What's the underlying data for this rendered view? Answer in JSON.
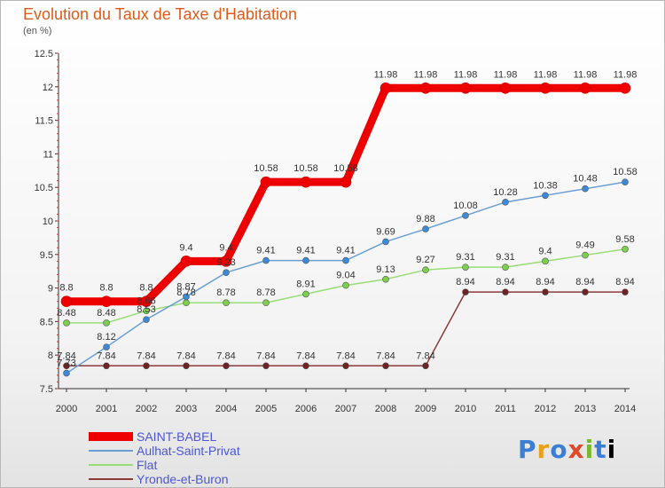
{
  "title": "Evolution du Taux de Taxe d'Habitation",
  "subtitle": "(en %)",
  "logo_text": "Proxiti",
  "chart_data": {
    "type": "line",
    "title": "Evolution du Taux de Taxe d'Habitation",
    "ylabel": "(en %)",
    "xlabel": "",
    "x": [
      "2000",
      "2001",
      "2002",
      "2003",
      "2004",
      "2005",
      "2006",
      "2007",
      "2008",
      "2009",
      "2010",
      "2011",
      "2012",
      "2013",
      "2014"
    ],
    "ylim": [
      7.5,
      12.5
    ],
    "yticks": [
      "7.5",
      "8",
      "8.5",
      "9",
      "9.5",
      "10",
      "10.5",
      "11",
      "11.5",
      "12",
      "12.5"
    ],
    "grid": false,
    "legend_position": "bottom-left",
    "series": [
      {
        "name": "SAINT-BABEL",
        "color": "#ee0000",
        "values": [
          8.8,
          8.8,
          8.8,
          9.4,
          9.4,
          10.58,
          10.58,
          10.58,
          11.98,
          11.98,
          11.98,
          11.98,
          11.98,
          11.98,
          11.98
        ],
        "labels": [
          "8.8",
          "8.8",
          "8.8",
          "9.4",
          "9.4",
          "10.58",
          "10.58",
          "10.58",
          "11.98",
          "11.98",
          "11.98",
          "11.98",
          "11.98",
          "11.98",
          "11.98"
        ]
      },
      {
        "name": "Aulhat-Saint-Privat",
        "color": "#6a9fd4",
        "values": [
          7.73,
          8.12,
          8.53,
          8.87,
          9.23,
          9.41,
          9.41,
          9.41,
          9.69,
          9.88,
          10.08,
          10.28,
          10.38,
          10.48,
          10.58
        ],
        "labels": [
          "7.73",
          "8.12",
          "8.53",
          "8.87",
          "9.23",
          "9.41",
          "9.41",
          "9.41",
          "9.69",
          "9.88",
          "10.08",
          "10.28",
          "10.38",
          "10.48",
          "10.58"
        ]
      },
      {
        "name": "Flat",
        "color": "#99dd77",
        "values": [
          8.48,
          8.48,
          8.66,
          8.78,
          8.78,
          8.78,
          8.91,
          9.04,
          9.13,
          9.27,
          9.31,
          9.31,
          9.4,
          9.49,
          9.58
        ],
        "labels": [
          "8.48",
          "8.48",
          "8.66",
          "8.78",
          "8.78",
          "8.78",
          "8.91",
          "9.04",
          "9.13",
          "9.27",
          "9.31",
          "9.31",
          "9.4",
          "9.49",
          "9.58"
        ]
      },
      {
        "name": "Yronde-et-Buron",
        "color": "#8b3a3a",
        "values": [
          7.84,
          7.84,
          7.84,
          7.84,
          7.84,
          7.84,
          7.84,
          7.84,
          7.84,
          7.84,
          8.94,
          8.94,
          8.94,
          8.94,
          8.94
        ],
        "labels": [
          "7.84",
          "7.84",
          "7.84",
          "7.84",
          "7.84",
          "7.84",
          "7.84",
          "7.84",
          "7.84",
          "7.84",
          "8.94",
          "8.94",
          "8.94",
          "8.94",
          "8.94"
        ]
      }
    ]
  }
}
